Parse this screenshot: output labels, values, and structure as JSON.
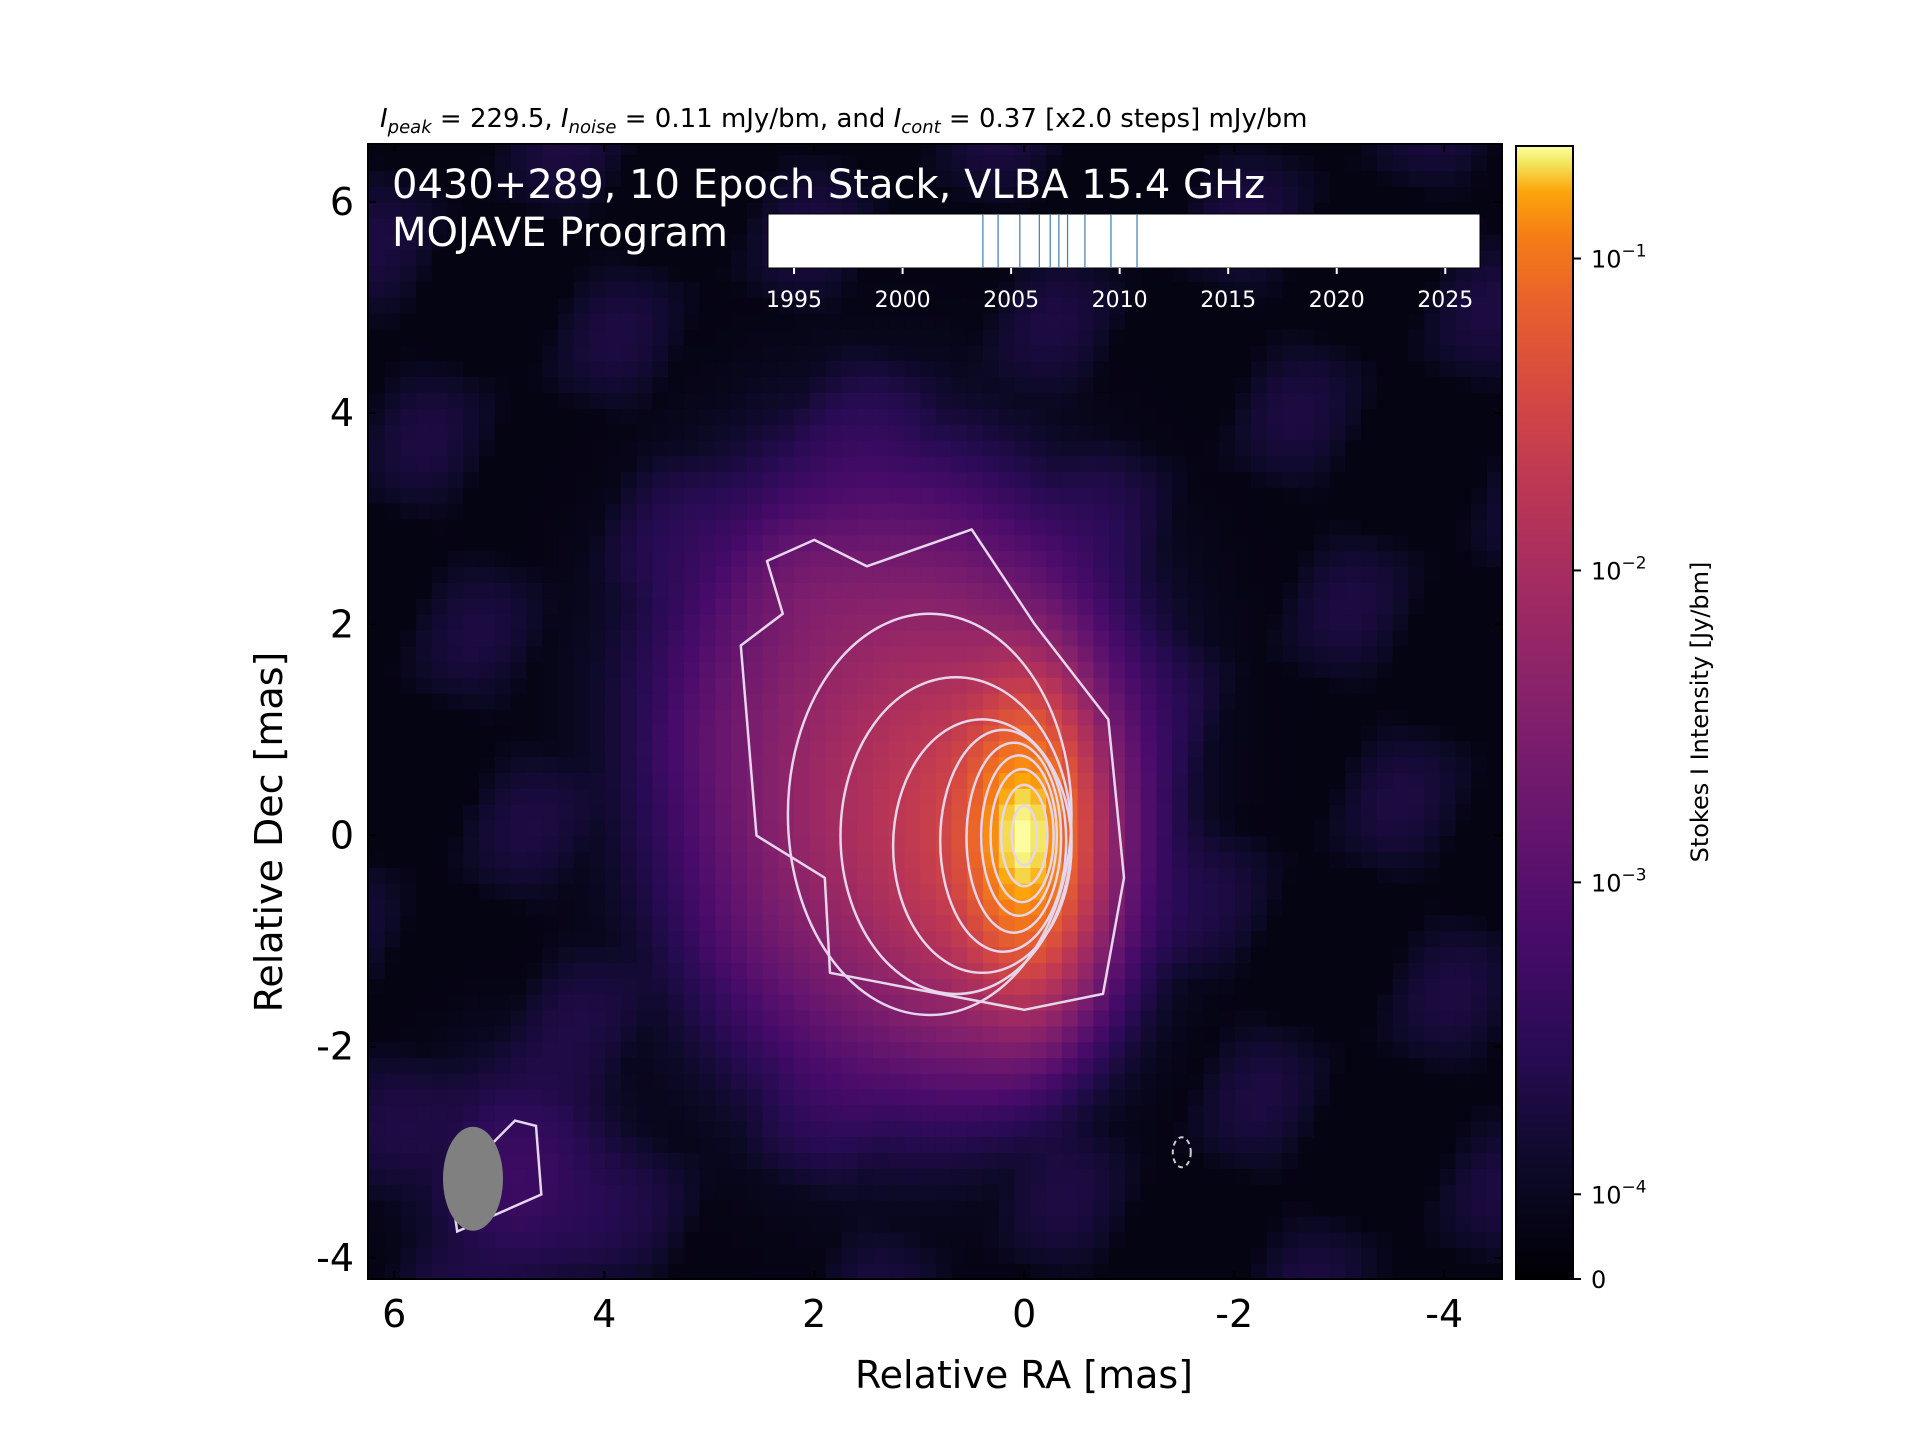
{
  "chart_data": {
    "type": "heatmap",
    "title_parts": {
      "peak_symbol": "I",
      "peak_sub": "peak",
      "peak_text": " = 229.5, ",
      "noise_symbol": "I",
      "noise_sub": "noise",
      "noise_text": " = 0.11 mJy/bm, and ",
      "cont_symbol": "I",
      "cont_sub": "cont",
      "cont_text": " = 0.37 [x2.0 steps] mJy/bm"
    },
    "annotation_lines": [
      "0430+289, 10 Epoch Stack, VLBA 15.4 GHz",
      "MOJAVE Program"
    ],
    "xlabel": "Relative RA [mas]",
    "ylabel": "Relative Dec [mas]",
    "xlim": [
      6.25,
      -4.55
    ],
    "ylim": [
      -4.2,
      6.55
    ],
    "x_ticks": [
      6,
      4,
      2,
      0,
      -2,
      -4
    ],
    "x_tick_labels": [
      "6",
      "4",
      "2",
      "0",
      "-2",
      "-4"
    ],
    "y_ticks": [
      6,
      4,
      2,
      0,
      -2,
      -4
    ],
    "y_tick_labels": [
      "6",
      "4",
      "2",
      "0",
      "-2",
      "-4"
    ],
    "colorbar": {
      "label": "Stokes I Intensity [Jy/bm]",
      "scale": "log",
      "colormap": "inferno",
      "tick_values": [
        0.1,
        0.01,
        0.001,
        0.0001,
        0
      ],
      "tick_bases": [
        "10",
        "10",
        "10",
        "10"
      ],
      "tick_exponents": [
        "−1",
        "−2",
        "−3",
        "−4"
      ],
      "zero_label": "0"
    },
    "epoch_timeline": {
      "xlim": [
        1993.8,
        2026.6
      ],
      "tick_years": [
        1995,
        2000,
        2005,
        2010,
        2015,
        2020,
        2025
      ],
      "tick_labels": [
        "1995",
        "2000",
        "2005",
        "2010",
        "2015",
        "2020",
        "2025"
      ],
      "epochs": [
        2003.7,
        2004.4,
        2005.4,
        2006.3,
        2006.8,
        2007.2,
        2007.6,
        2008.4,
        2009.6,
        2010.8
      ],
      "line_color": "#4a86b8"
    },
    "contours": {
      "color": "#e6d6ec",
      "negative_color": "#cccccc",
      "start_mJy": 0.37,
      "step_factor": 2.0,
      "peak_mJy": 229.5
    },
    "beam": {
      "color": "#808080",
      "ra": 5.25,
      "dec": -3.25
    }
  }
}
